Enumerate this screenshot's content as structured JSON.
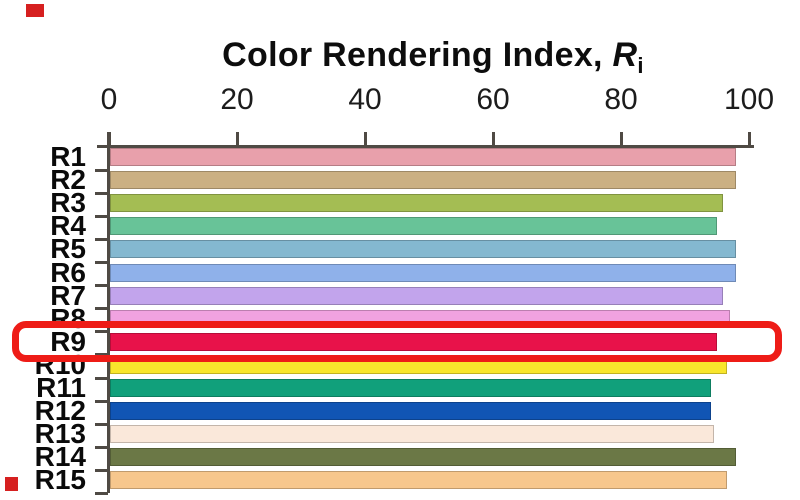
{
  "figure": {
    "title": {
      "text": "Color Rendering Index, ",
      "symbol": "R",
      "subscript": "i"
    }
  },
  "chart_data": {
    "type": "bar",
    "orientation": "horizontal",
    "title": "Color Rendering Index, Ri",
    "xlabel": "Color Rendering Index, Ri",
    "ylabel": "",
    "xlim": [
      0,
      100
    ],
    "xticks": [
      0,
      20,
      40,
      60,
      80,
      100
    ],
    "grid": false,
    "legend": false,
    "categories": [
      "R1",
      "R2",
      "R3",
      "R4",
      "R5",
      "R6",
      "R7",
      "R8",
      "R9",
      "R10",
      "R11",
      "R12",
      "R13",
      "R14",
      "R15"
    ],
    "values": [
      98,
      98,
      96,
      95,
      98,
      98,
      96,
      97,
      95,
      96.5,
      94,
      94,
      94.5,
      98,
      96.5
    ],
    "bar_colors": [
      "#e8a0ab",
      "#cbb083",
      "#a4bd53",
      "#68c398",
      "#84b8d0",
      "#8fb1ea",
      "#c2a4ec",
      "#f1a2e0",
      "#e8124a",
      "#f8e62c",
      "#11a07b",
      "#1155b4",
      "#fae8da",
      "#6b7846",
      "#f7c78d"
    ],
    "highlight": {
      "category": "R9",
      "style": "red-rounded-box",
      "color": "#ee1c17"
    }
  },
  "annotations": {
    "corner_marks": [
      {
        "position": "top-left",
        "color": "#d62020"
      },
      {
        "position": "bottom-left",
        "color": "#d62020"
      }
    ]
  }
}
